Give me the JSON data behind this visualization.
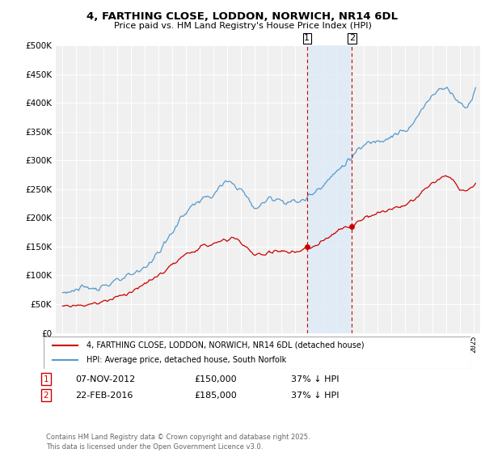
{
  "title": "4, FARTHING CLOSE, LODDON, NORWICH, NR14 6DL",
  "subtitle": "Price paid vs. HM Land Registry's House Price Index (HPI)",
  "legend_line1": "4, FARTHING CLOSE, LODDON, NORWICH, NR14 6DL (detached house)",
  "legend_line2": "HPI: Average price, detached house, South Norfolk",
  "annotation1_label": "1",
  "annotation1_date": "07-NOV-2012",
  "annotation1_price": "£150,000",
  "annotation1_hpi": "37% ↓ HPI",
  "annotation2_label": "2",
  "annotation2_date": "22-FEB-2016",
  "annotation2_price": "£185,000",
  "annotation2_hpi": "37% ↓ HPI",
  "footer": "Contains HM Land Registry data © Crown copyright and database right 2025.\nThis data is licensed under the Open Government Licence v3.0.",
  "vline1_year": 2012.85,
  "vline2_year": 2016.13,
  "shade_xmin": 2012.85,
  "shade_xmax": 2016.13,
  "purchase1_price": 150000,
  "purchase2_price": 185000,
  "ylim_min": 0,
  "ylim_max": 500000,
  "xlim_min": 1994.5,
  "xlim_max": 2025.5,
  "color_red": "#cc0000",
  "color_blue": "#5599cc",
  "color_shade": "#ddeaf7",
  "color_vline": "#cc0000",
  "background_chart": "#f0f0f0",
  "background_fig": "#ffffff",
  "grid_color": "#ffffff"
}
